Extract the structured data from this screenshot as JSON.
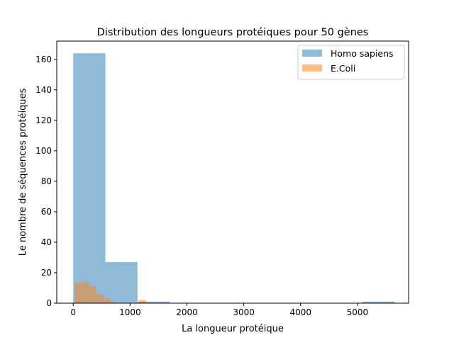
{
  "chart_data": {
    "type": "bar",
    "title": "Distribution des longueurs protéiques pour 50 gènes",
    "xlabel": "La longueur protéique",
    "ylabel": "Le nombre de séquences protéiques",
    "xlim": [
      -290,
      5900
    ],
    "ylim": [
      0,
      172
    ],
    "xticks": [
      0,
      1000,
      2000,
      3000,
      4000,
      5000
    ],
    "yticks": [
      0,
      20,
      40,
      60,
      80,
      100,
      120,
      140,
      160
    ],
    "grid": false,
    "legend_position": "top-right",
    "series": [
      {
        "name": "Homo sapiens",
        "color": "#1f77b4",
        "opacity": 0.5,
        "bins": [
          {
            "x0": 0,
            "x1": 565,
            "count": 164
          },
          {
            "x0": 565,
            "x1": 1130,
            "count": 27
          },
          {
            "x0": 1130,
            "x1": 1695,
            "count": 1
          },
          {
            "x0": 1695,
            "x1": 2260,
            "count": 0
          },
          {
            "x0": 2260,
            "x1": 2825,
            "count": 0
          },
          {
            "x0": 2825,
            "x1": 3390,
            "count": 0
          },
          {
            "x0": 3390,
            "x1": 3955,
            "count": 0
          },
          {
            "x0": 3955,
            "x1": 4520,
            "count": 0
          },
          {
            "x0": 4520,
            "x1": 5085,
            "count": 0
          },
          {
            "x0": 5085,
            "x1": 5650,
            "count": 1
          }
        ]
      },
      {
        "name": "E.Coli",
        "color": "#ff7f0e",
        "opacity": 0.5,
        "bins": [
          {
            "x0": 30,
            "x1": 155,
            "count": 13
          },
          {
            "x0": 155,
            "x1": 280,
            "count": 14
          },
          {
            "x0": 280,
            "x1": 405,
            "count": 11
          },
          {
            "x0": 405,
            "x1": 530,
            "count": 6
          },
          {
            "x0": 530,
            "x1": 655,
            "count": 3
          },
          {
            "x0": 655,
            "x1": 780,
            "count": 1
          },
          {
            "x0": 780,
            "x1": 905,
            "count": 0
          },
          {
            "x0": 905,
            "x1": 1030,
            "count": 0
          },
          {
            "x0": 1030,
            "x1": 1155,
            "count": 0
          },
          {
            "x0": 1155,
            "x1": 1280,
            "count": 2
          }
        ]
      }
    ]
  }
}
